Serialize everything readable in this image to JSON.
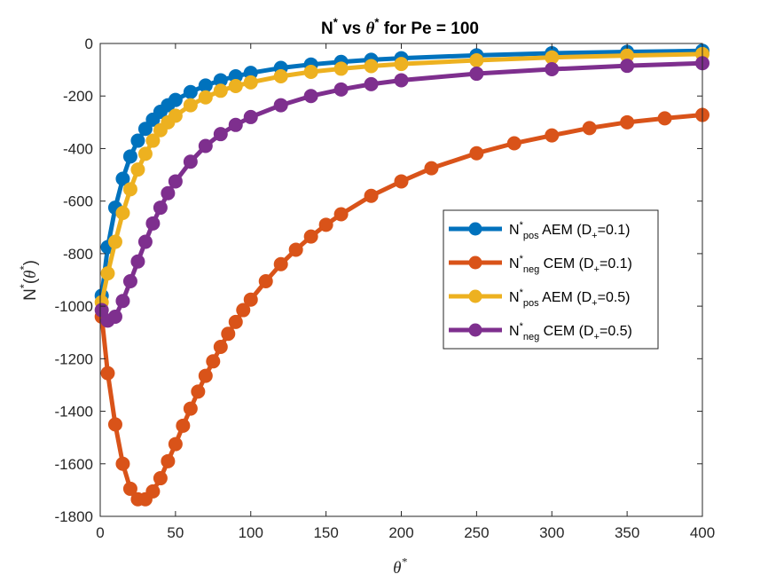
{
  "chart_data": {
    "type": "line",
    "title": "N* vs θ* for Pe = 100",
    "xlabel": "θ*",
    "ylabel": "N*(θ*)",
    "xlim": [
      0,
      400
    ],
    "ylim": [
      -1800,
      0
    ],
    "xticks": [
      0,
      50,
      100,
      150,
      200,
      250,
      300,
      350,
      400
    ],
    "yticks": [
      0,
      -200,
      -400,
      -600,
      -800,
      -1000,
      -1200,
      -1400,
      -1600,
      -1800
    ],
    "grid": false,
    "legend_position": "right",
    "marker": "circle",
    "series": [
      {
        "name": "N*pos AEM (D+=0.1)",
        "color": "#0072BD",
        "x": [
          1,
          5,
          10,
          15,
          20,
          25,
          30,
          35,
          40,
          45,
          50,
          60,
          70,
          80,
          90,
          100,
          120,
          140,
          160,
          180,
          200,
          250,
          300,
          350,
          400
        ],
        "y": [
          -960,
          -775,
          -625,
          -515,
          -430,
          -370,
          -325,
          -290,
          -260,
          -235,
          -215,
          -185,
          -160,
          -140,
          -125,
          -112,
          -93,
          -80,
          -70,
          -62,
          -56,
          -45,
          -37,
          -32,
          -28
        ]
      },
      {
        "name": "N*neg CEM (D+=0.1)",
        "color": "#D95319",
        "x": [
          1,
          5,
          10,
          15,
          20,
          25,
          30,
          35,
          40,
          45,
          50,
          55,
          60,
          65,
          70,
          75,
          80,
          85,
          90,
          95,
          100,
          110,
          120,
          130,
          140,
          150,
          160,
          180,
          200,
          220,
          250,
          275,
          300,
          325,
          350,
          375,
          400
        ],
        "y": [
          -1040,
          -1255,
          -1450,
          -1600,
          -1695,
          -1735,
          -1735,
          -1705,
          -1655,
          -1590,
          -1525,
          -1455,
          -1390,
          -1325,
          -1265,
          -1210,
          -1155,
          -1105,
          -1060,
          -1015,
          -975,
          -905,
          -840,
          -785,
          -735,
          -690,
          -650,
          -580,
          -525,
          -475,
          -418,
          -380,
          -350,
          -322,
          -300,
          -285,
          -272
        ]
      },
      {
        "name": "N*pos AEM (D+=0.5)",
        "color": "#EDB120",
        "x": [
          1,
          5,
          10,
          15,
          20,
          25,
          30,
          35,
          40,
          45,
          50,
          60,
          70,
          80,
          90,
          100,
          120,
          140,
          160,
          180,
          200,
          250,
          300,
          350,
          400
        ],
        "y": [
          -985,
          -875,
          -755,
          -645,
          -555,
          -480,
          -420,
          -370,
          -330,
          -300,
          -275,
          -235,
          -205,
          -180,
          -162,
          -148,
          -125,
          -108,
          -96,
          -86,
          -78,
          -64,
          -53,
          -46,
          -40
        ]
      },
      {
        "name": "N*neg CEM (D+=0.5)",
        "color": "#7E2F8E",
        "x": [
          1,
          5,
          10,
          15,
          20,
          25,
          30,
          35,
          40,
          45,
          50,
          60,
          70,
          80,
          90,
          100,
          120,
          140,
          160,
          180,
          200,
          250,
          300,
          350,
          400
        ],
        "y": [
          -1015,
          -1055,
          -1040,
          -980,
          -905,
          -830,
          -755,
          -685,
          -625,
          -570,
          -525,
          -450,
          -390,
          -345,
          -310,
          -280,
          -235,
          -200,
          -175,
          -155,
          -140,
          -115,
          -98,
          -85,
          -75
        ]
      }
    ]
  }
}
